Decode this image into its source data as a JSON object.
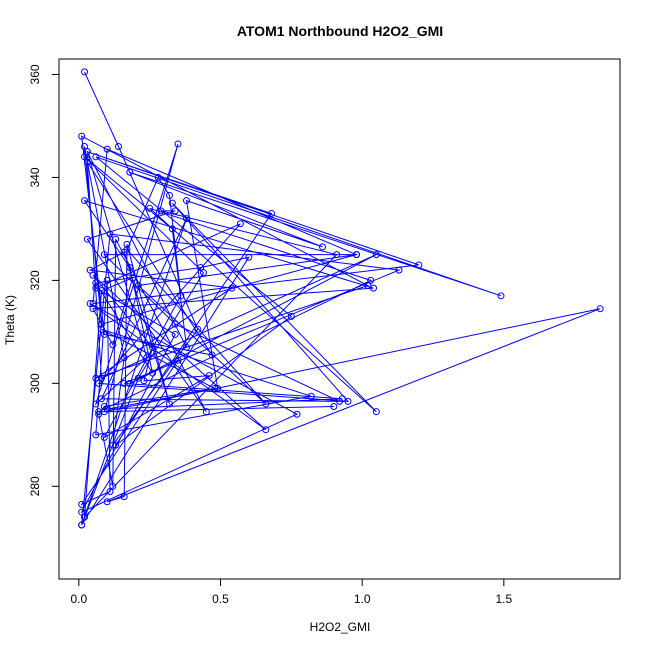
{
  "chart_data": {
    "type": "line",
    "title": "ATOM1 Northbound H2O2_GMI",
    "xlabel": "H2O2_GMI",
    "ylabel": "Theta (K)",
    "xlim": [
      -0.07,
      1.91
    ],
    "ylim": [
      262,
      363
    ],
    "xticks": [
      0.0,
      0.5,
      1.0,
      1.5
    ],
    "xtick_labels": [
      "0.0",
      "0.5",
      "1.0",
      "1.5"
    ],
    "yticks": [
      280,
      300,
      320,
      340,
      360
    ],
    "ytick_labels": [
      "280",
      "300",
      "320",
      "340",
      "360"
    ],
    "grid": false,
    "legend": "none",
    "series": [
      {
        "color": "#0000ff",
        "marker": "open-circle",
        "x": [
          0.02,
          0.14,
          0.42,
          0.12,
          0.16,
          0.02,
          0.08,
          0.98,
          0.1,
          0.05,
          1.2,
          0.03,
          0.24,
          0.06,
          0.35,
          0.09,
          1.84,
          0.1,
          0.16,
          0.17,
          0.32,
          0.16,
          0.04,
          0.54,
          0.06,
          1.02,
          0.01,
          0.09,
          0.47,
          0.03,
          0.08,
          1.05,
          0.18,
          0.35,
          0.01,
          0.11,
          0.1,
          0.06,
          0.82,
          0.08,
          0.48,
          0.09,
          0.07,
          0.12,
          0.13,
          0.45,
          0.03,
          0.34,
          0.29,
          0.91,
          0.02,
          0.08,
          0.19,
          0.12,
          0.05,
          1.04,
          0.02,
          0.18,
          0.26,
          0.06,
          0.43,
          0.6,
          0.01,
          0.21,
          0.44,
          0.02,
          0.33,
          0.38,
          0.03,
          0.68,
          0.13,
          0.75,
          0.06,
          1.49,
          0.18,
          0.86,
          0.38,
          0.49,
          0.1,
          0.93,
          0.16,
          1.13,
          0.11,
          0.01,
          0.38,
          0.08,
          0.92,
          0.34,
          0.09,
          0.98,
          0.21,
          0.66,
          0.17,
          0.28,
          0.32,
          0.36,
          0.09,
          0.46,
          0.23,
          0.26,
          0.05,
          0.66,
          0.04,
          0.77,
          0.01,
          0.34,
          0.06,
          0.57,
          0.07,
          0.95,
          0.33,
          1.05,
          0.25,
          1.03,
          0.07,
          0.9
        ],
        "y": [
          360.5,
          346.0,
          310.5,
          288.0,
          305.0,
          346.0,
          311.5,
          325.0,
          345.5,
          315.5,
          323.0,
          345.0,
          305.0,
          296.0,
          346.5,
          294.5,
          314.5,
          277.0,
          278.0,
          327.0,
          296.0,
          325.5,
          322.0,
          318.5,
          301.0,
          319.0,
          348.0,
          309.5,
          305.5,
          343.0,
          301.0,
          325.0,
          300.0,
          304.5,
          276.5,
          279.0,
          320.0,
          290.0,
          297.5,
          310.5,
          299.0,
          295.5,
          294.0,
          280.0,
          328.0,
          294.5,
          328.0,
          333.5,
          333.5,
          325.0,
          274.0,
          318.0,
          320.5,
          307.5,
          314.5,
          318.5,
          335.5,
          322.5,
          302.0,
          319.5,
          322.5,
          324.5,
          272.5,
          301.0,
          321.5,
          344.0,
          330.0,
          307.0,
          345.0,
          333.0,
          288.0,
          313.0,
          344.0,
          317.0,
          341.0,
          326.5,
          335.5,
          299.0,
          295.0,
          297.0,
          300.0,
          322.0,
          329.0,
          272.5,
          332.0,
          297.0,
          296.5,
          311.5,
          325.0,
          325.0,
          319.0,
          296.0,
          326.0,
          340.0,
          336.5,
          317.0,
          289.5,
          301.5,
          300.5,
          307.0,
          321.0,
          291.0,
          315.5,
          294.0,
          275.0,
          309.5,
          318.5,
          331.0,
          300.0,
          296.5,
          335.0,
          294.5,
          334.0,
          320.0,
          294.5,
          295.5
        ]
      }
    ]
  }
}
